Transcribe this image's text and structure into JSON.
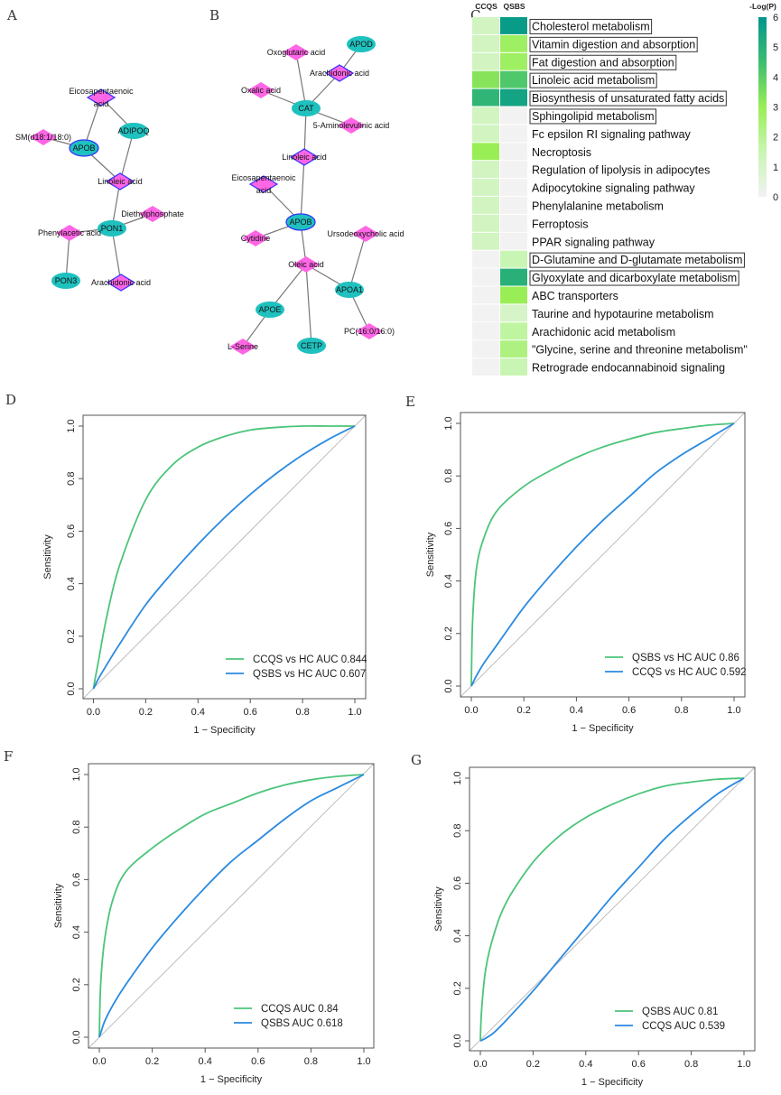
{
  "panels": {
    "A": "A",
    "B": "B",
    "C": "C",
    "D": "D",
    "E": "E",
    "F": "F",
    "G": "G"
  },
  "colors": {
    "protein": "#1fc1bf",
    "metabolite": "#ff66e6",
    "highlight_border": "#3333ff",
    "edge": "#777777",
    "curve_green": "#4cc47a",
    "curve_blue": "#2a8ae0",
    "diagonal": "#bdbdbd"
  },
  "networks": [
    {
      "panel": "A",
      "nodes": [
        {
          "id": "a_epa",
          "label": [
            "Eicosapentaenoic",
            "acid"
          ],
          "type": "metabolite",
          "highlighted": true
        },
        {
          "id": "a_adipoq",
          "label": [
            "ADIPOQ"
          ],
          "type": "protein",
          "highlighted": false
        },
        {
          "id": "a_sm",
          "label": [
            "SM(d18:1/18:0)"
          ],
          "type": "metabolite",
          "highlighted": false
        },
        {
          "id": "a_apob",
          "label": [
            "APOB"
          ],
          "type": "protein",
          "highlighted": true
        },
        {
          "id": "a_lin",
          "label": [
            "Linoleic acid"
          ],
          "type": "metabolite",
          "highlighted": true
        },
        {
          "id": "a_dep",
          "label": [
            "Diethylphosphate"
          ],
          "type": "metabolite",
          "highlighted": false
        },
        {
          "id": "a_pon1",
          "label": [
            "PON1"
          ],
          "type": "protein",
          "highlighted": false
        },
        {
          "id": "a_phe",
          "label": [
            "Phenylacetic acid"
          ],
          "type": "metabolite",
          "highlighted": false
        },
        {
          "id": "a_pon3",
          "label": [
            "PON3"
          ],
          "type": "protein",
          "highlighted": false
        },
        {
          "id": "a_ara",
          "label": [
            "Arachidonic acid"
          ],
          "type": "metabolite",
          "highlighted": true
        }
      ],
      "edges": [
        [
          "a_epa",
          "a_apob"
        ],
        [
          "a_epa",
          "a_adipoq"
        ],
        [
          "a_sm",
          "a_apob"
        ],
        [
          "a_apob",
          "a_lin"
        ],
        [
          "a_adipoq",
          "a_lin"
        ],
        [
          "a_lin",
          "a_pon1"
        ],
        [
          "a_pon1",
          "a_dep"
        ],
        [
          "a_pon1",
          "a_phe"
        ],
        [
          "a_phe",
          "a_pon3"
        ],
        [
          "a_pon1",
          "a_ara"
        ]
      ]
    },
    {
      "panel": "B",
      "nodes": [
        {
          "id": "b_apod",
          "label": [
            "APOD"
          ],
          "type": "protein",
          "highlighted": false
        },
        {
          "id": "b_oxo",
          "label": [
            "Oxoglutaric acid"
          ],
          "type": "metabolite",
          "highlighted": false
        },
        {
          "id": "b_ara",
          "label": [
            "Arachidonic acid"
          ],
          "type": "metabolite",
          "highlighted": true
        },
        {
          "id": "b_oxa",
          "label": [
            "Oxalic acid"
          ],
          "type": "metabolite",
          "highlighted": false
        },
        {
          "id": "b_cat",
          "label": [
            "CAT"
          ],
          "type": "protein",
          "highlighted": false
        },
        {
          "id": "b_ala",
          "label": [
            "5-Aminolevulinic acid"
          ],
          "type": "metabolite",
          "highlighted": false
        },
        {
          "id": "b_lin",
          "label": [
            "Linoleic acid"
          ],
          "type": "metabolite",
          "highlighted": true
        },
        {
          "id": "b_epa",
          "label": [
            "Eicosapentaenoic",
            "acid"
          ],
          "type": "metabolite",
          "highlighted": true
        },
        {
          "id": "b_apob",
          "label": [
            "APOB"
          ],
          "type": "protein",
          "highlighted": true
        },
        {
          "id": "b_cyt",
          "label": [
            "Cytidine"
          ],
          "type": "metabolite",
          "highlighted": false
        },
        {
          "id": "b_udca",
          "label": [
            "Ursodeoxycholic acid"
          ],
          "type": "metabolite",
          "highlighted": false
        },
        {
          "id": "b_ole",
          "label": [
            "Oleic acid"
          ],
          "type": "metabolite",
          "highlighted": false
        },
        {
          "id": "b_apoa1",
          "label": [
            "APOA1"
          ],
          "type": "protein",
          "highlighted": false
        },
        {
          "id": "b_apoe",
          "label": [
            "APOE"
          ],
          "type": "protein",
          "highlighted": false
        },
        {
          "id": "b_pc",
          "label": [
            "PC(16:0/16:0)"
          ],
          "type": "metabolite",
          "highlighted": false
        },
        {
          "id": "b_ser",
          "label": [
            "L-Serine"
          ],
          "type": "metabolite",
          "highlighted": false
        },
        {
          "id": "b_cetp",
          "label": [
            "CETP"
          ],
          "type": "protein",
          "highlighted": false
        }
      ],
      "edges": [
        [
          "b_apod",
          "b_ara"
        ],
        [
          "b_oxo",
          "b_cat"
        ],
        [
          "b_ara",
          "b_cat"
        ],
        [
          "b_oxa",
          "b_cat"
        ],
        [
          "b_cat",
          "b_ala"
        ],
        [
          "b_cat",
          "b_lin"
        ],
        [
          "b_lin",
          "b_apob"
        ],
        [
          "b_epa",
          "b_apob"
        ],
        [
          "b_apob",
          "b_cyt"
        ],
        [
          "b_apob",
          "b_ole"
        ],
        [
          "b_ole",
          "b_apoa1"
        ],
        [
          "b_udca",
          "b_apoa1"
        ],
        [
          "b_apoa1",
          "b_pc"
        ],
        [
          "b_ole",
          "b_apoe"
        ],
        [
          "b_apoe",
          "b_ser"
        ],
        [
          "b_ole",
          "b_cetp"
        ]
      ]
    }
  ],
  "chart_data": [
    {
      "panel": "C",
      "type": "heatmap",
      "columns": [
        "CCQS",
        "QSBS"
      ],
      "legend_title": "-Log(P)",
      "scale": {
        "min": 0,
        "max": 6,
        "ticks": [
          0,
          1,
          2,
          3,
          4,
          5,
          6
        ],
        "stops": [
          [
            0,
            "#f2f2f2"
          ],
          [
            1.5,
            "#c9f5b4"
          ],
          [
            3,
            "#99ee55"
          ],
          [
            4.5,
            "#3dbd70"
          ],
          [
            6,
            "#00968c"
          ]
        ]
      },
      "rows": [
        {
          "label": "Cholesterol metabolism",
          "values": [
            1.2,
            5.8
          ],
          "boxed": true
        },
        {
          "label": "Vitamin digestion and absorption",
          "values": [
            1.2,
            2.8
          ],
          "boxed": true
        },
        {
          "label": "Fat digestion and absorption",
          "values": [
            1.2,
            2.8
          ],
          "boxed": true
        },
        {
          "label": "Linoleic acid metabolism",
          "values": [
            3.3,
            4.2
          ],
          "boxed": true
        },
        {
          "label": "Biosynthesis of unsaturated fatty acids",
          "values": [
            4.8,
            5.5
          ],
          "boxed": true
        },
        {
          "label": "Sphingolipid metabolism",
          "values": [
            1.2,
            0
          ],
          "boxed": true
        },
        {
          "label": "Fc epsilon RI signaling pathway",
          "values": [
            1.2,
            0
          ],
          "boxed": false
        },
        {
          "label": "Necroptosis",
          "values": [
            3.0,
            0
          ],
          "boxed": false
        },
        {
          "label": "Regulation of lipolysis in adipocytes",
          "values": [
            1.2,
            0
          ],
          "boxed": false
        },
        {
          "label": "Adipocytokine signaling pathway",
          "values": [
            1.2,
            0
          ],
          "boxed": false
        },
        {
          "label": "Phenylalanine metabolism",
          "values": [
            1.2,
            0
          ],
          "boxed": false
        },
        {
          "label": "Ferroptosis",
          "values": [
            1.2,
            0
          ],
          "boxed": false
        },
        {
          "label": "PPAR signaling pathway",
          "values": [
            1.2,
            0
          ],
          "boxed": false
        },
        {
          "label": "D-Glutamine and D-glutamate metabolism",
          "values": [
            0,
            1.5
          ],
          "boxed": true
        },
        {
          "label": "Glyoxylate and dicarboxylate metabolism",
          "values": [
            0,
            5.0
          ],
          "boxed": true
        },
        {
          "label": "ABC transporters",
          "values": [
            0,
            3.0
          ],
          "boxed": false
        },
        {
          "label": "Taurine and hypotaurine metabolism",
          "values": [
            0,
            1.0
          ],
          "boxed": false
        },
        {
          "label": "Arachidonic acid metabolism",
          "values": [
            0,
            1.8
          ],
          "boxed": false
        },
        {
          "label": "\"Glycine, serine and threonine metabolism\"",
          "values": [
            0,
            2.3
          ],
          "boxed": false
        },
        {
          "label": "Retrograde endocannabinoid signaling",
          "values": [
            0,
            1.5
          ],
          "boxed": false
        }
      ]
    },
    {
      "panel": "D",
      "type": "line",
      "xlabel": "1 − Specificity",
      "ylabel": "Sensitivity",
      "xlim": [
        0,
        1
      ],
      "ylim": [
        0,
        1
      ],
      "xticks": [
        "0.0",
        "0.2",
        "0.4",
        "0.6",
        "0.8",
        "1.0"
      ],
      "yticks": [
        "0.0",
        "0.2",
        "0.4",
        "0.6",
        "0.8",
        "1.0"
      ],
      "legend": "bottom-right",
      "x": [
        0,
        0.005,
        0.02,
        0.05,
        0.1,
        0.2,
        0.3,
        0.4,
        0.5,
        0.6,
        0.7,
        0.8,
        0.9,
        1
      ],
      "series": [
        {
          "name": "CCQS vs HC AUC 0.844",
          "auc": 0.844,
          "color": "green",
          "y": [
            0,
            0.03,
            0.11,
            0.27,
            0.47,
            0.72,
            0.85,
            0.92,
            0.96,
            0.985,
            0.995,
            1,
            1,
            1
          ]
        },
        {
          "name": "QSBS vs HC AUC 0.607",
          "auc": 0.607,
          "color": "blue",
          "y": [
            0,
            0.01,
            0.04,
            0.09,
            0.17,
            0.32,
            0.44,
            0.55,
            0.65,
            0.74,
            0.82,
            0.89,
            0.95,
            1
          ]
        }
      ]
    },
    {
      "panel": "E",
      "type": "line",
      "xlabel": "1 − Specificity",
      "ylabel": "Sensitivity",
      "xlim": [
        0,
        1
      ],
      "ylim": [
        0,
        1
      ],
      "xticks": [
        "0.0",
        "0.2",
        "0.4",
        "0.6",
        "0.8",
        "1.0"
      ],
      "yticks": [
        "0.0",
        "0.2",
        "0.4",
        "0.6",
        "0.8",
        "1.0"
      ],
      "legend": "bottom-right",
      "x": [
        0,
        0.005,
        0.02,
        0.05,
        0.1,
        0.2,
        0.3,
        0.4,
        0.5,
        0.6,
        0.7,
        0.8,
        0.9,
        1
      ],
      "series": [
        {
          "name": "QSBS vs HC AUC 0.86",
          "auc": 0.86,
          "color": "green",
          "y": [
            0,
            0.25,
            0.45,
            0.57,
            0.67,
            0.76,
            0.82,
            0.87,
            0.91,
            0.94,
            0.965,
            0.98,
            0.993,
            1
          ]
        },
        {
          "name": "CCQS vs HC AUC 0.592",
          "auc": 0.592,
          "color": "blue",
          "y": [
            0,
            0.01,
            0.04,
            0.09,
            0.16,
            0.3,
            0.42,
            0.53,
            0.63,
            0.72,
            0.81,
            0.88,
            0.94,
            1
          ]
        }
      ]
    },
    {
      "panel": "F",
      "type": "line",
      "xlabel": "1 − Specificity",
      "ylabel": "Sensitivity",
      "xlim": [
        0,
        1
      ],
      "ylim": [
        0,
        1
      ],
      "xticks": [
        "0.0",
        "0.2",
        "0.4",
        "0.6",
        "0.8",
        "1.0"
      ],
      "yticks": [
        "0.0",
        "0.2",
        "0.4",
        "0.6",
        "0.8",
        "1.0"
      ],
      "legend": "bottom-right",
      "x": [
        0,
        0.005,
        0.02,
        0.05,
        0.1,
        0.2,
        0.3,
        0.4,
        0.5,
        0.6,
        0.7,
        0.8,
        0.9,
        1
      ],
      "series": [
        {
          "name": "CCQS AUC 0.84",
          "auc": 0.84,
          "color": "green",
          "y": [
            0,
            0.2,
            0.37,
            0.52,
            0.63,
            0.72,
            0.79,
            0.85,
            0.89,
            0.93,
            0.96,
            0.98,
            0.993,
            1
          ]
        },
        {
          "name": "QSBS AUC 0.618",
          "auc": 0.618,
          "color": "blue",
          "y": [
            0,
            0.015,
            0.06,
            0.12,
            0.2,
            0.34,
            0.46,
            0.57,
            0.67,
            0.75,
            0.83,
            0.9,
            0.95,
            1
          ]
        }
      ]
    },
    {
      "panel": "G",
      "type": "line",
      "xlabel": "1 − Specificity",
      "ylabel": "Sensitivity",
      "xlim": [
        0,
        1
      ],
      "ylim": [
        0,
        1
      ],
      "xticks": [
        "0.0",
        "0.2",
        "0.4",
        "0.6",
        "0.8",
        "1.0"
      ],
      "yticks": [
        "0.0",
        "0.2",
        "0.4",
        "0.6",
        "0.8",
        "1.0"
      ],
      "legend": "bottom-right",
      "x": [
        0,
        0.005,
        0.02,
        0.05,
        0.1,
        0.2,
        0.3,
        0.4,
        0.5,
        0.6,
        0.7,
        0.8,
        0.9,
        1
      ],
      "series": [
        {
          "name": "QSBS AUC 0.81",
          "auc": 0.81,
          "color": "green",
          "y": [
            0,
            0.12,
            0.27,
            0.4,
            0.53,
            0.68,
            0.78,
            0.85,
            0.9,
            0.94,
            0.97,
            0.985,
            0.996,
            1
          ]
        },
        {
          "name": "CCQS AUC 0.539",
          "auc": 0.539,
          "color": "blue",
          "y": [
            0,
            0.002,
            0.01,
            0.03,
            0.08,
            0.19,
            0.31,
            0.43,
            0.55,
            0.66,
            0.77,
            0.86,
            0.94,
            1
          ]
        }
      ]
    }
  ]
}
